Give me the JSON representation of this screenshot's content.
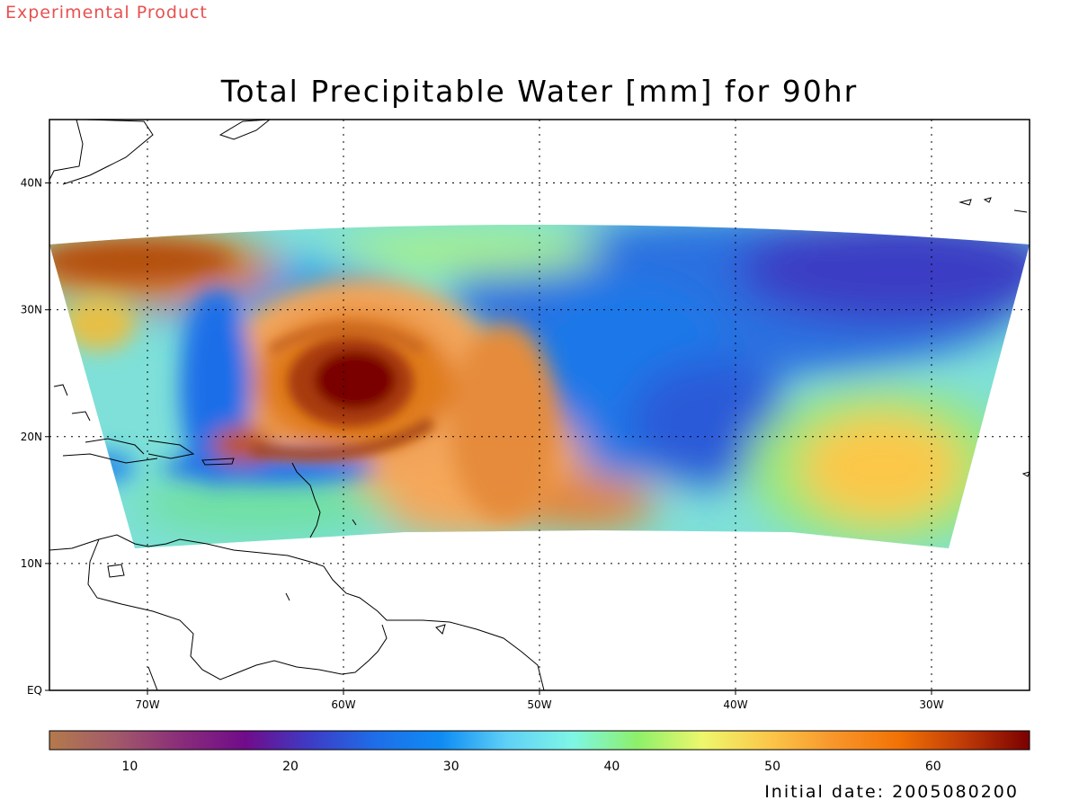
{
  "header": {
    "experimental_label": "Experimental Product",
    "title": "Total Precipitable Water [mm] for 90hr",
    "initial_date": "Initial date: 2005080200"
  },
  "map": {
    "lon_range": [
      -75,
      -25
    ],
    "lat_range": [
      0,
      45
    ],
    "lon_ticks": [
      {
        "value": -70,
        "label": "70W"
      },
      {
        "value": -60,
        "label": "60W"
      },
      {
        "value": -50,
        "label": "50W"
      },
      {
        "value": -40,
        "label": "40W"
      },
      {
        "value": -30,
        "label": "30W"
      }
    ],
    "lat_ticks": [
      {
        "value": 0,
        "label": "EQ"
      },
      {
        "value": 10,
        "label": "10N"
      },
      {
        "value": 20,
        "label": "20N"
      },
      {
        "value": 30,
        "label": "30N"
      },
      {
        "value": 40,
        "label": "40N"
      }
    ],
    "grid": "dotted",
    "features": [
      {
        "name": "tropical-cyclone-moisture-core",
        "lon": -59.5,
        "lat": 24.5
      },
      {
        "name": "moist-region-east",
        "lon": -33,
        "lat": 19
      }
    ]
  },
  "colorbar": {
    "min": 5,
    "max": 66,
    "ticks": [
      10,
      20,
      30,
      40,
      50,
      60
    ],
    "colors": [
      "#b37a4c",
      "#a35a6a",
      "#8a2d7a",
      "#700c8a",
      "#3d3cc6",
      "#1e6ee8",
      "#0f8cf4",
      "#5fd1f6",
      "#7ef6e6",
      "#8df06a",
      "#eef76c",
      "#fbc84a",
      "#f8962b",
      "#f27205",
      "#bf3a07",
      "#7a0000"
    ]
  }
}
